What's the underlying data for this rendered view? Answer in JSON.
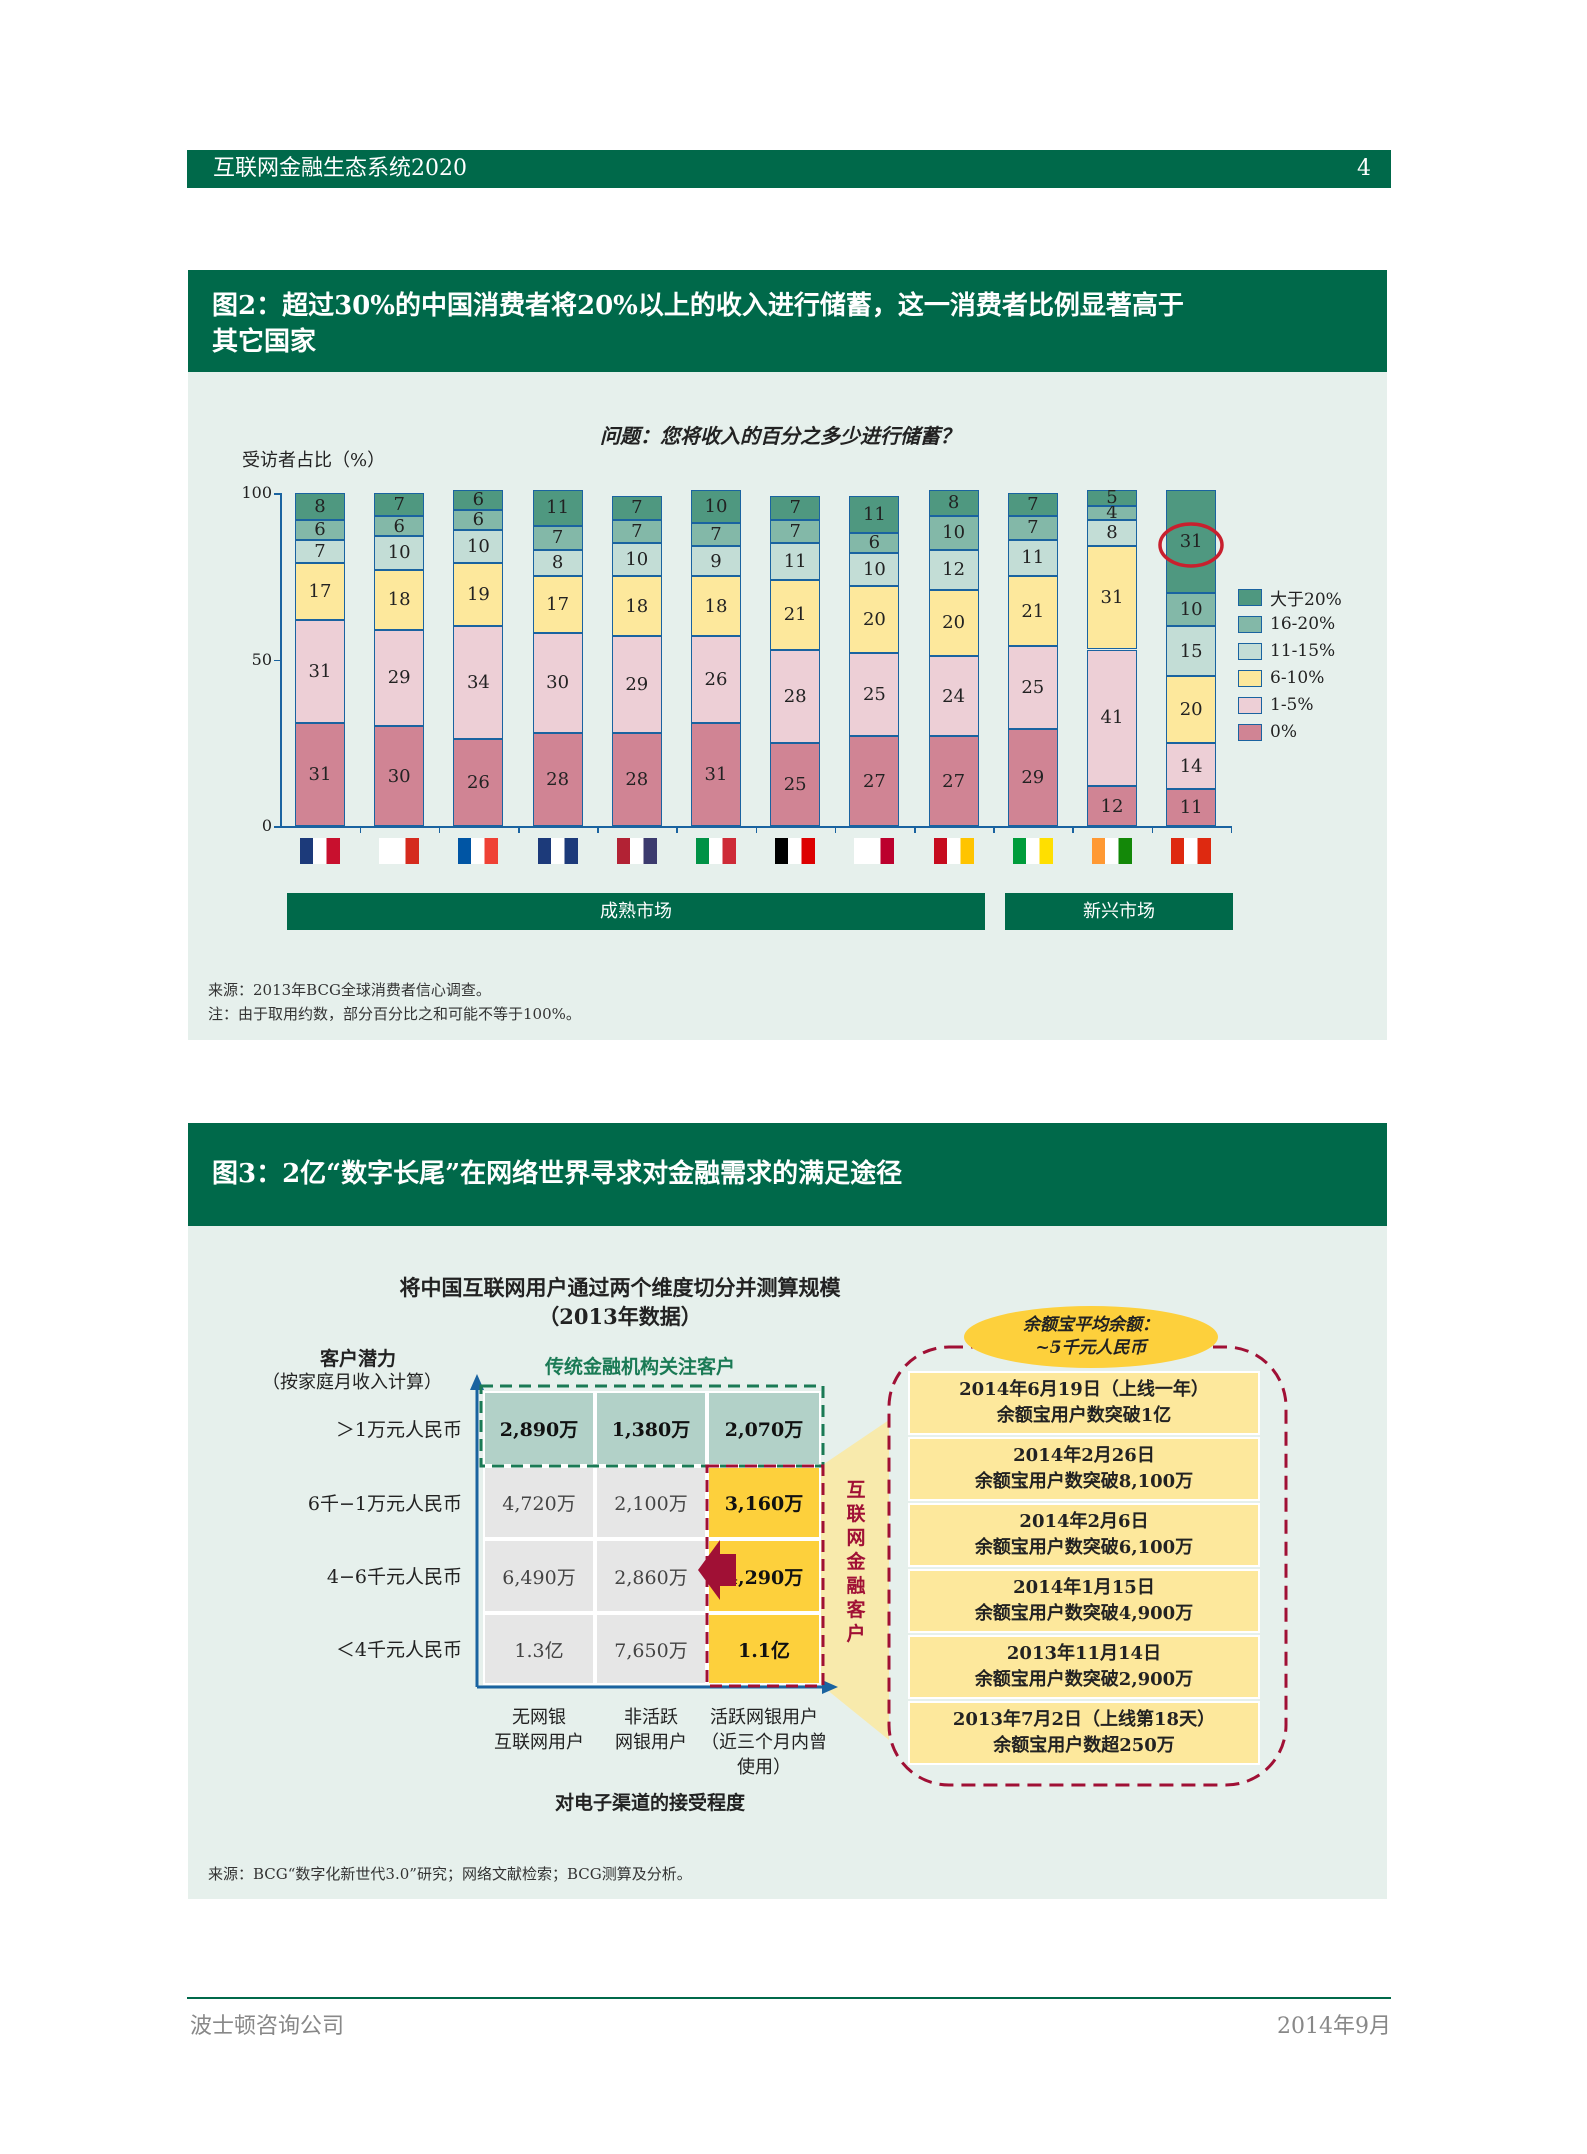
{
  "header": {
    "title": "互联网金融生态系统2020",
    "page": "4"
  },
  "fig2": {
    "title_line1": "图2：超过30%的中国消费者将20%以上的收入进行储蓄，这一消费者比例显著高于",
    "title_line2": "其它国家",
    "question": "问题：您将收入的百分之多少进行储蓄？",
    "ylabel": "受访者占比（%）",
    "source": "来源：2013年BCG全球消费者信心调查。",
    "note": "注：由于取用约数，部分百分比之和可能不等于100%。",
    "mature": "成熟市场",
    "emerging": "新兴市场"
  },
  "chart_data": {
    "type": "bar",
    "stacked": true,
    "ylabel": "受访者占比（%）",
    "ylim": [
      0,
      100
    ],
    "yticks": [
      "0",
      "50",
      "100"
    ],
    "categories": [
      "英国",
      "加拿大",
      "法国",
      "澳大利亚",
      "美国",
      "意大利",
      "德国",
      "日本",
      "西班牙",
      "巴西",
      "印度",
      "中国"
    ],
    "series": [
      {
        "name": "0%",
        "color": "#d08494",
        "values": [
          31,
          30,
          26,
          28,
          28,
          31,
          25,
          27,
          27,
          29,
          12,
          11
        ]
      },
      {
        "name": "1-5%",
        "color": "#edcfd6",
        "values": [
          31,
          29,
          34,
          30,
          29,
          26,
          28,
          25,
          24,
          25,
          41,
          14
        ]
      },
      {
        "name": "6-10%",
        "color": "#fde89c",
        "values": [
          17,
          18,
          19,
          17,
          18,
          18,
          21,
          20,
          20,
          21,
          31,
          20
        ]
      },
      {
        "name": "11-15%",
        "color": "#c3ddd6",
        "values": [
          7,
          10,
          10,
          8,
          10,
          9,
          11,
          10,
          12,
          11,
          8,
          15
        ]
      },
      {
        "name": "16-20%",
        "color": "#83b8a8",
        "values": [
          6,
          6,
          6,
          7,
          7,
          7,
          7,
          6,
          10,
          7,
          4,
          10
        ]
      },
      {
        "name": "大于20%",
        "color": "#4f9880",
        "values": [
          8,
          7,
          6,
          11,
          7,
          10,
          7,
          11,
          8,
          7,
          5,
          31
        ]
      }
    ],
    "legend": "right",
    "highlight": "中国 大于20% 31"
  },
  "fig3": {
    "title": "图3：2亿“数字长尾”在网络世界寻求对金融需求的满足途径",
    "sub1": "将中国互联网用户通过两个维度切分并测算规模",
    "sub2": "（2013年数据）",
    "yaxis1": "客户潜力",
    "yaxis2": "（按家庭月收入计算）",
    "traditional": "传统金融机构关注客户",
    "internet": "互联网金融客户",
    "xaxis": "对电子渠道的接受程度",
    "rows": [
      "＞1万元人民币",
      "6千−1万元人民币",
      "4−6千元人民币",
      "＜4千元人民币"
    ],
    "cols": [
      "无网银\n互联网用户",
      "非活跃\n网银用户",
      "活跃网银用户\n（近三个月内曾\n使用）"
    ],
    "cells": [
      [
        "2,890万",
        "1,380万",
        "2,070万"
      ],
      [
        "4,720万",
        "2,100万",
        "3,160万"
      ],
      [
        "6,490万",
        "2,860万",
        "4,290万"
      ],
      [
        "1.3亿",
        "7,650万",
        "1.1亿"
      ]
    ],
    "avg1": "余额宝平均余额：",
    "avg2": "~5千元人民币",
    "milestones": [
      [
        "2014年6月19日（上线一年）",
        "余额宝用户数突破1亿"
      ],
      [
        "2014年2月26日",
        "余额宝用户数突破8,100万"
      ],
      [
        "2014年2月6日",
        "余额宝用户数突破6,100万"
      ],
      [
        "2014年1月15日",
        "余额宝用户数突破4,900万"
      ],
      [
        "2013年11月14日",
        "余额宝用户数突破2,900万"
      ],
      [
        "2013年7月2日（上线第18天）",
        "余额宝用户数超250万"
      ]
    ],
    "source": "来源：BCG“数字化新世代3.0”研究；网络文献检索；BCG测算及分析。"
  },
  "footer": {
    "left": "波士顿咨询公司",
    "right": "2014年9月"
  }
}
